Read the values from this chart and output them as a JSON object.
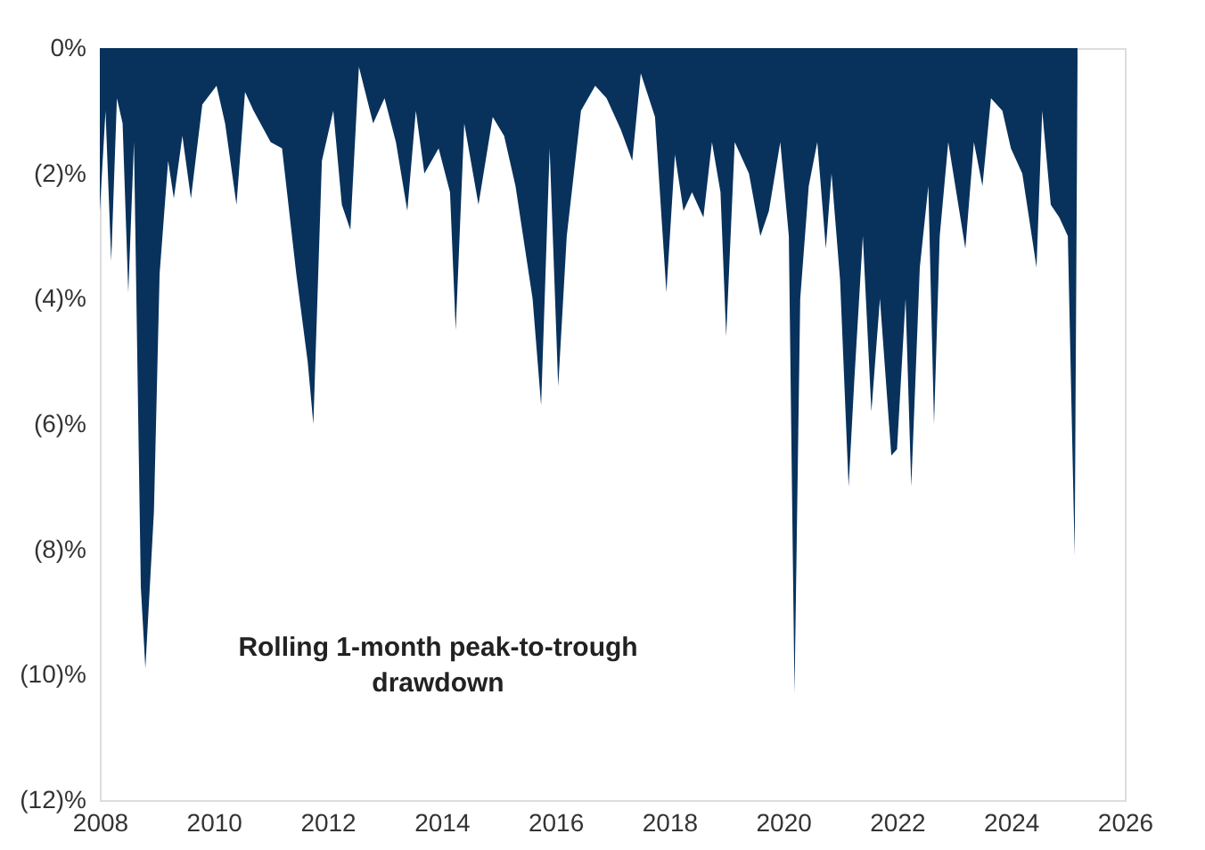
{
  "chart_data": {
    "type": "area",
    "x": [
      2008.0,
      2008.1,
      2008.2,
      2008.3,
      2008.4,
      2008.5,
      2008.6,
      2008.72,
      2008.8,
      2008.95,
      2009.05,
      2009.2,
      2009.3,
      2009.45,
      2009.6,
      2009.8,
      2010.05,
      2010.2,
      2010.4,
      2010.55,
      2010.7,
      2011.0,
      2011.2,
      2011.45,
      2011.65,
      2011.75,
      2011.9,
      2012.1,
      2012.25,
      2012.4,
      2012.55,
      2012.8,
      2013.0,
      2013.2,
      2013.4,
      2013.55,
      2013.7,
      2013.95,
      2014.15,
      2014.25,
      2014.4,
      2014.65,
      2014.9,
      2015.1,
      2015.3,
      2015.6,
      2015.75,
      2015.9,
      2016.05,
      2016.2,
      2016.45,
      2016.7,
      2016.9,
      2017.15,
      2017.35,
      2017.5,
      2017.75,
      2017.95,
      2018.1,
      2018.25,
      2018.4,
      2018.6,
      2018.75,
      2018.9,
      2019.0,
      2019.15,
      2019.4,
      2019.6,
      2019.75,
      2019.95,
      2020.1,
      2020.2,
      2020.3,
      2020.45,
      2020.6,
      2020.75,
      2020.85,
      2021.0,
      2021.15,
      2021.25,
      2021.4,
      2021.55,
      2021.7,
      2021.9,
      2022.0,
      2022.15,
      2022.25,
      2022.4,
      2022.55,
      2022.65,
      2022.75,
      2022.9,
      2023.2,
      2023.35,
      2023.5,
      2023.65,
      2023.85,
      2024.0,
      2024.2,
      2024.45,
      2024.55,
      2024.7,
      2024.85,
      2025.0,
      2025.12,
      2025.17
    ],
    "series": [
      {
        "color": "#08325c",
        "values": [
          -2.6,
          -1.0,
          -3.4,
          -0.8,
          -1.2,
          -3.9,
          -1.5,
          -8.6,
          -9.9,
          -7.4,
          -3.6,
          -1.8,
          -2.4,
          -1.4,
          -2.4,
          -0.9,
          -0.6,
          -1.2,
          -2.5,
          -0.7,
          -1.0,
          -1.5,
          -1.6,
          -3.6,
          -5.0,
          -6.0,
          -1.8,
          -1.0,
          -2.5,
          -2.9,
          -0.3,
          -1.2,
          -0.8,
          -1.5,
          -2.6,
          -1.0,
          -2.0,
          -1.6,
          -2.3,
          -4.5,
          -1.2,
          -2.5,
          -1.1,
          -1.4,
          -2.2,
          -4.0,
          -5.7,
          -1.6,
          -5.4,
          -3.0,
          -1.0,
          -0.6,
          -0.8,
          -1.3,
          -1.8,
          -0.4,
          -1.1,
          -3.9,
          -1.7,
          -2.6,
          -2.3,
          -2.7,
          -1.5,
          -2.3,
          -4.6,
          -1.5,
          -2.0,
          -3.0,
          -2.6,
          -1.5,
          -3.0,
          -10.3,
          -4.0,
          -2.2,
          -1.5,
          -3.2,
          -2.0,
          -3.7,
          -7.0,
          -5.3,
          -3.0,
          -5.8,
          -4.0,
          -6.5,
          -6.4,
          -4.0,
          -7.0,
          -3.5,
          -2.2,
          -6.0,
          -3.0,
          -1.5,
          -3.2,
          -1.5,
          -2.2,
          -0.8,
          -1.0,
          -1.6,
          -2.0,
          -3.5,
          -1.0,
          -2.5,
          -2.7,
          -3.0,
          -8.1,
          -0.2
        ]
      }
    ],
    "xlim": [
      2008,
      2026
    ],
    "xticks": [
      2008,
      2010,
      2012,
      2014,
      2016,
      2018,
      2020,
      2022,
      2024,
      2026
    ],
    "ylim": [
      -12,
      0
    ],
    "yticks": [
      {
        "value": 0,
        "label": "0%"
      },
      {
        "value": -2,
        "label": "(2)%"
      },
      {
        "value": -4,
        "label": "(4)%"
      },
      {
        "value": -6,
        "label": "(6)%"
      },
      {
        "value": -8,
        "label": "(8)%"
      },
      {
        "value": -10,
        "label": "(10)%"
      },
      {
        "value": -12,
        "label": "(12)%"
      }
    ],
    "grid": false,
    "annotations": [
      "Rolling 1-month peak-to-trough drawdown"
    ]
  }
}
